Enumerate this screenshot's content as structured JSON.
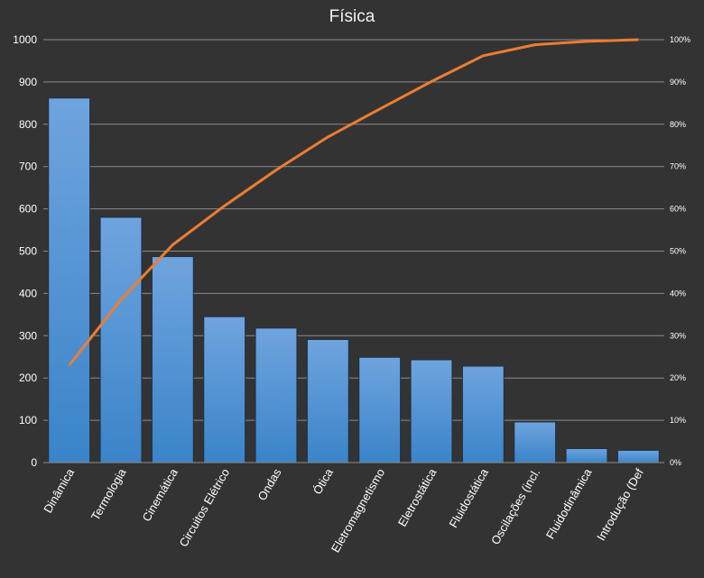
{
  "chart_data": {
    "type": "bar",
    "title": "Física",
    "categories": [
      "Dinâmica",
      "Termologia",
      "Cinemática",
      "Circuitos Elétrico",
      "Ondas",
      "Ótica",
      "Eletromagnetismo",
      "Eletrostática",
      "Fluidostática",
      "Oscilações (incl.",
      "Fluidodinâmica",
      "Introdução (Def"
    ],
    "series": [
      {
        "type": "bar",
        "values": [
          862,
          580,
          487,
          345,
          318,
          291,
          249,
          243,
          228,
          96,
          33,
          29
        ]
      },
      {
        "type": "line",
        "axis": "right",
        "values": [
          0.23,
          0.385,
          0.515,
          0.607,
          0.692,
          0.77,
          0.836,
          0.901,
          0.962,
          0.988,
          0.996,
          1.0
        ]
      }
    ],
    "ylim": [
      0,
      1000
    ],
    "yticks": [
      0,
      100,
      200,
      300,
      400,
      500,
      600,
      700,
      800,
      900,
      1000
    ],
    "y2lim": [
      0,
      1
    ],
    "y2ticks": [
      "0%",
      "10%",
      "20%",
      "30%",
      "40%",
      "50%",
      "60%",
      "70%",
      "80%",
      "90%",
      "100%"
    ],
    "grid": true,
    "colors": {
      "background": "#333333",
      "grid": "#8c8c8c",
      "bar_top": "#6fa4de",
      "bar_bottom": "#3a84c9",
      "bar_stroke": "#1f2f45",
      "line": "#ed7d31",
      "text": "#ffffff"
    }
  }
}
